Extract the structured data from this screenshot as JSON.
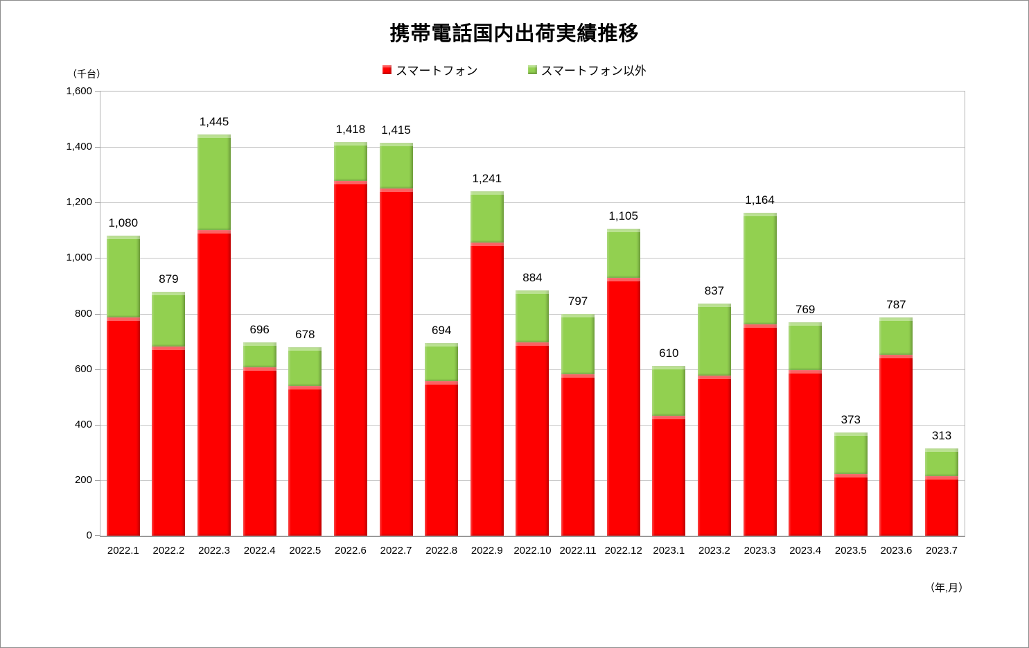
{
  "chart": {
    "title": "携帯電話国内出荷実績推移",
    "y_axis_unit": "（千台）",
    "x_axis_unit": "（年,月）",
    "legend": [
      {
        "label": "スマートフォン",
        "color": "#fe0000"
      },
      {
        "label": "スマートフォン以外",
        "color": "#92d050"
      }
    ]
  },
  "chart_data": {
    "type": "bar",
    "stacked": true,
    "title": "携帯電話国内出荷実績推移",
    "categories": [
      "2022.1",
      "2022.2",
      "2022.3",
      "2022.4",
      "2022.5",
      "2022.6",
      "2022.7",
      "2022.8",
      "2022.9",
      "2022.10",
      "2022.11",
      "2022.12",
      "2023.1",
      "2023.2",
      "2023.3",
      "2023.4",
      "2023.5",
      "2023.6",
      "2023.7"
    ],
    "series": [
      {
        "name": "スマートフォン",
        "color": "#fe0000",
        "values": [
          786,
          682,
          1100,
          606,
          539,
          1277,
          1250,
          556,
          1056,
          697,
          581,
          929,
          431,
          577,
          762,
          597,
          223,
          651,
          214
        ]
      },
      {
        "name": "スマートフォン以外",
        "color": "#92d050",
        "values": [
          294,
          197,
          345,
          90,
          139,
          141,
          165,
          138,
          185,
          187,
          216,
          176,
          179,
          260,
          402,
          172,
          150,
          136,
          99
        ]
      }
    ],
    "totals": [
      1080,
      879,
      1445,
      696,
      678,
      1418,
      1415,
      694,
      1241,
      884,
      797,
      1105,
      610,
      837,
      1164,
      769,
      373,
      787,
      313
    ],
    "total_labels": [
      "1,080",
      "879",
      "1,445",
      "696",
      "678",
      "1,418",
      "1,415",
      "694",
      "1,241",
      "884",
      "797",
      "1,105",
      "610",
      "837",
      "1,164",
      "769",
      "373",
      "787",
      "313"
    ],
    "xlabel": "（年,月）",
    "ylabel": "（千台）",
    "ylim": [
      0,
      1600
    ],
    "ytick_step": 200,
    "ytick_labels": [
      "0",
      "200",
      "400",
      "600",
      "800",
      "1,000",
      "1,200",
      "1,400",
      "1,600"
    ],
    "grid": true,
    "legend_position": "top",
    "colors": {
      "grid": "#c6c6c6",
      "axis": "#9a9a9a",
      "text": "#000000"
    }
  }
}
